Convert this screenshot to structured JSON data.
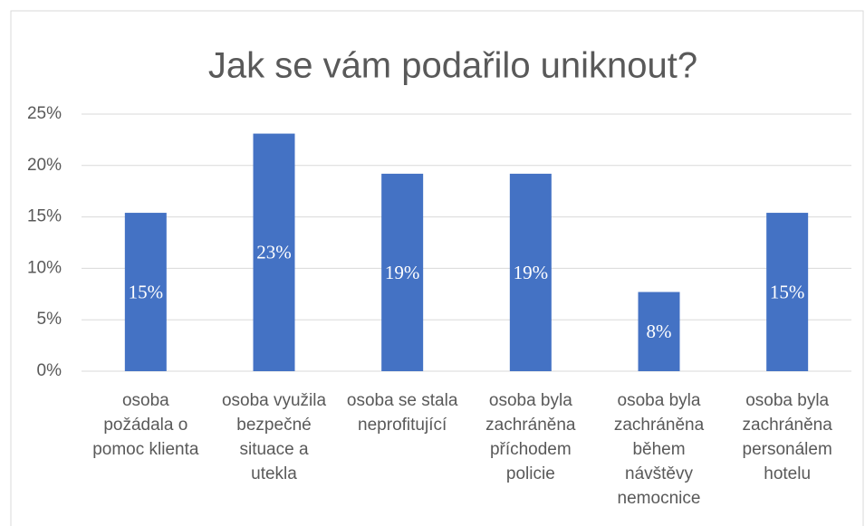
{
  "chart_data": {
    "type": "bar",
    "title": "Jak se vám podařilo uniknout?",
    "categories": [
      "osoba\npožádala o\npomoc klienta",
      "osoba využila\nbezpečné\nsituace a\nutekla",
      "osoba se stala\nneprofitující",
      "osoba byla\nzachráněna\npříchodem\npolicie",
      "osoba byla\nzachráněna\nběhem\nnávštěvy\nnemocnice",
      "osoba byla\nzachráněna\npersonálem\nhotelu"
    ],
    "values": [
      15.4,
      23.1,
      19.2,
      19.2,
      7.7,
      15.4
    ],
    "value_labels": [
      "15%",
      "23%",
      "19%",
      "19%",
      "8%",
      "15%"
    ],
    "color": "#4472c4",
    "ylim": [
      0,
      25
    ],
    "yticks": [
      {
        "value": 0,
        "label": "0%"
      },
      {
        "value": 5,
        "label": "5%"
      },
      {
        "value": 10,
        "label": "10%"
      },
      {
        "value": 15,
        "label": "15%"
      },
      {
        "value": 20,
        "label": "20%"
      },
      {
        "value": 25,
        "label": "25%"
      }
    ],
    "grid": true
  }
}
